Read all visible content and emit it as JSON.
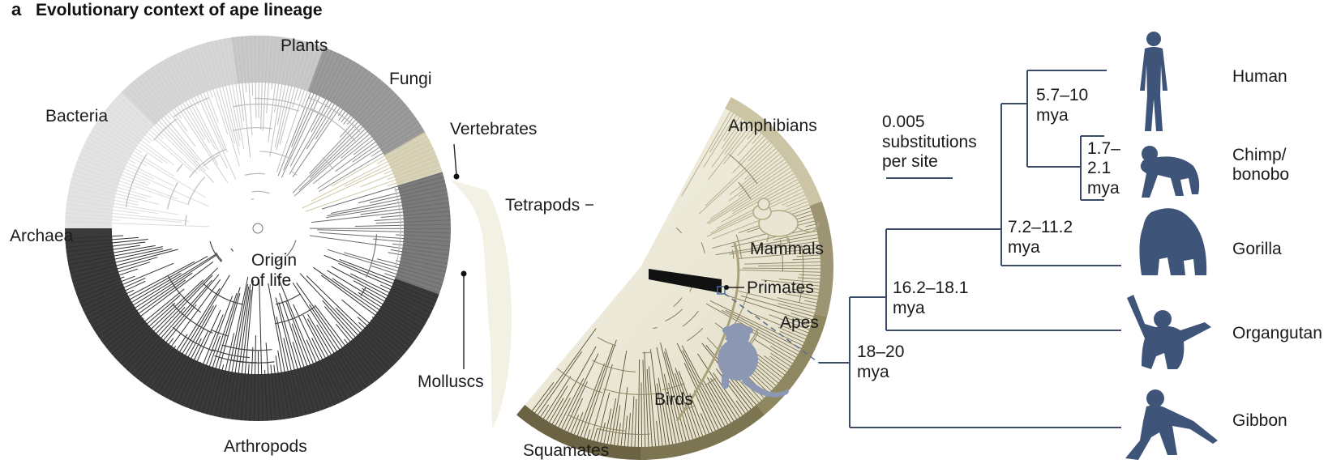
{
  "panel": {
    "letter": "a",
    "title": "Evolutionary context of ape lineage"
  },
  "tree_of_life": {
    "labels": {
      "bacteria": "Bacteria",
      "plants": "Plants",
      "fungi": "Fungi",
      "vertebrates": "Vertebrates",
      "archaea": "Archaea",
      "origin_line1": "Origin",
      "origin_line2": "of life",
      "molluscs": "Molluscs",
      "arthropods": "Arthropods"
    }
  },
  "vertebrate_tree": {
    "labels": {
      "amphibians": "Amphibians",
      "tetrapods": "Tetrapods",
      "mammals": "Mammals",
      "primates": "Primates",
      "apes": "Apes",
      "birds": "Birds",
      "squamates": "Squamates"
    }
  },
  "ape_tree": {
    "scale_line1": "0.005",
    "scale_line2": "substitutions",
    "scale_line3": "per site",
    "taxa": {
      "human": "Human",
      "chimp_line1": "Chimp/",
      "chimp_line2": "bonobo",
      "gorilla": "Gorilla",
      "orangutan": "Organgutan",
      "gibbon": "Gibbon"
    },
    "nodes": {
      "human_chimp_1": "5.7–10",
      "human_chimp_2": "mya",
      "chimp_bonobo_1": "1.7–",
      "chimp_bonobo_2": "2.1",
      "chimp_bonobo_3": "mya",
      "gorilla_1": "7.2–11.2",
      "gorilla_2": "mya",
      "orangutan_1": "16.2–18.1",
      "orangutan_2": "mya",
      "gibbon_1": "18–20",
      "gibbon_2": "mya"
    }
  },
  "colors": {
    "tree_dark": "#2b2b2b",
    "tree_mid": "#8a8a8a",
    "tree_light": "#d8d8d8",
    "olive": "#6b6343",
    "silhouette": "#3f5479"
  }
}
